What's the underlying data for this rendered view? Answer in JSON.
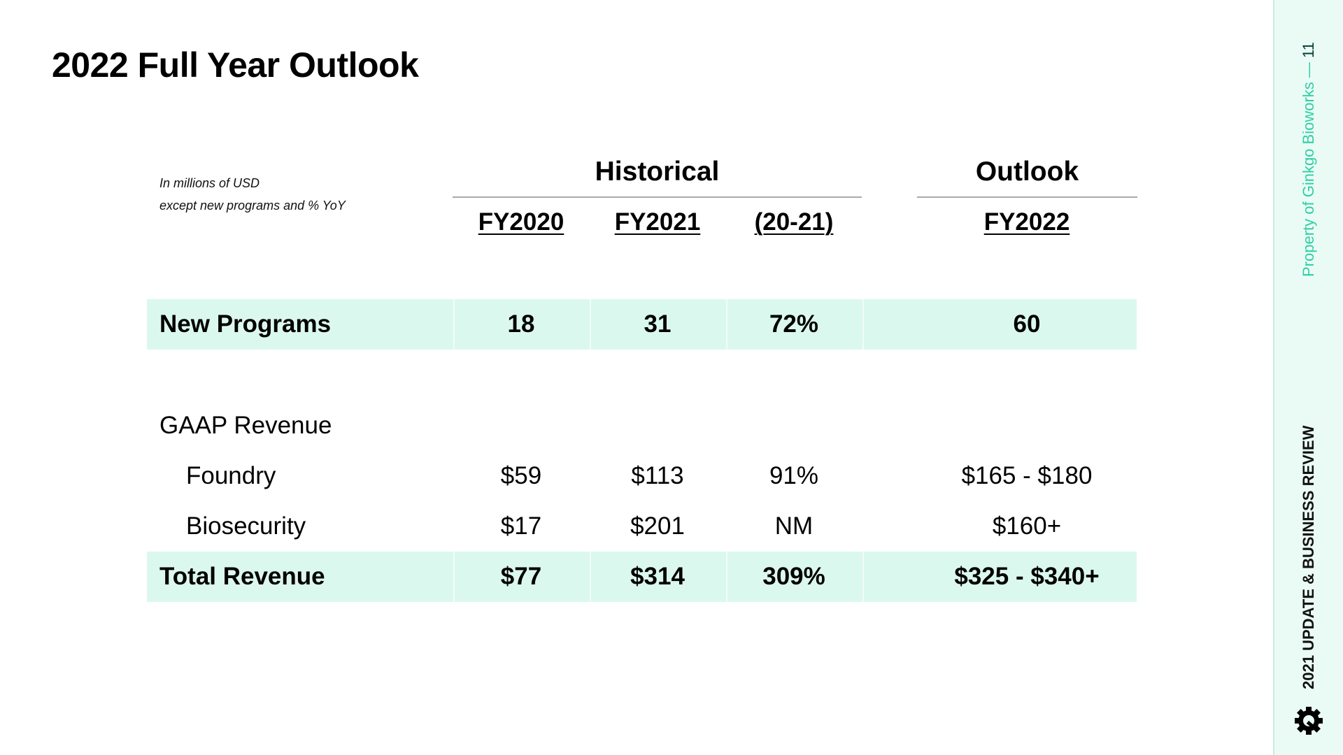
{
  "title": "2022 Full Year Outlook",
  "note": {
    "line1": "In millions of USD",
    "line2": "except new programs and % YoY"
  },
  "groups": {
    "historical": "Historical",
    "outlook": "Outlook"
  },
  "columns": [
    "FY2020",
    "FY2021",
    "(20-21)",
    "FY2022"
  ],
  "rows": {
    "new_programs": {
      "label": "New Programs",
      "values": [
        "18",
        "31",
        "72%",
        "60"
      ]
    },
    "gaap_revenue": {
      "label": "GAAP Revenue"
    },
    "foundry": {
      "label": "Foundry",
      "values": [
        "$59",
        "$113",
        "91%",
        "$165 - $180"
      ]
    },
    "biosecurity": {
      "label": "Biosecurity",
      "values": [
        "$17",
        "$201",
        "NM",
        "$160+"
      ]
    },
    "total_revenue": {
      "label": "Total Revenue",
      "values": [
        "$77",
        "$314",
        "309%",
        "$325 - $340+"
      ]
    }
  },
  "sidebar": {
    "property": "Property of Ginkgo Bioworks",
    "separator": "—",
    "page_number": "11",
    "report": "2021 UPDATE & BUSINESS REVIEW",
    "logo_icon": "ginkgo-logo-icon"
  },
  "colors": {
    "highlight": "#dbf8ef",
    "accent": "#2ecfa3",
    "sidebar_bg": "#eafbf5"
  }
}
